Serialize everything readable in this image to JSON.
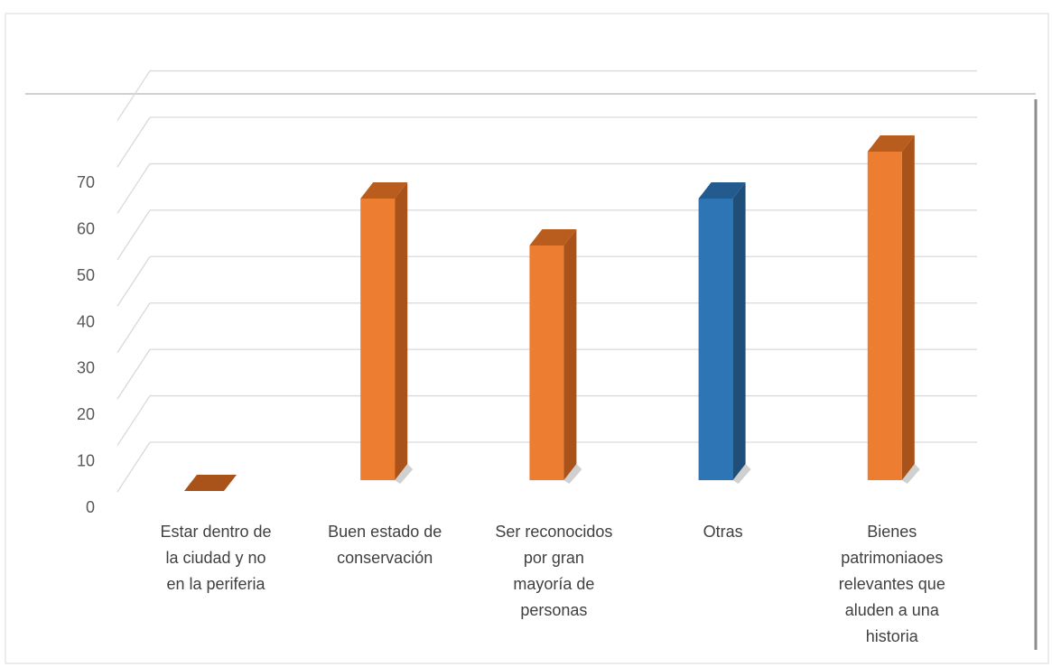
{
  "chart_data": {
    "type": "bar",
    "title": "",
    "xlabel": "",
    "ylabel": "",
    "categories": [
      [
        "Estar dentro de",
        "la ciudad y no",
        "en la periferia"
      ],
      [
        "Buen estado de",
        "conservación"
      ],
      [
        "Ser reconocidos",
        "por gran",
        "mayoría de",
        "personas"
      ],
      [
        "Otras"
      ],
      [
        "Bienes",
        "patrimoniaoes",
        "relevantes que",
        "aluden a una",
        "historia"
      ]
    ],
    "values": [
      0,
      60,
      50,
      60,
      70
    ],
    "bar_colors": [
      "#ED7D31",
      "#ED7D31",
      "#ED7D31",
      "#2E75B6",
      "#ED7D31"
    ],
    "bar_side_colors": [
      "#A9521A",
      "#A9521A",
      "#A9521A",
      "#1F4E79",
      "#A9521A"
    ],
    "bar_top_colors": [
      "#B85D1E",
      "#B85D1E",
      "#B85D1E",
      "#245B8E",
      "#B85D1E"
    ],
    "ylim": [
      0,
      70
    ],
    "yticks": [
      0,
      10,
      20,
      30,
      40,
      50,
      60,
      70
    ],
    "grid": true,
    "legend": "none",
    "style": "3d-column"
  }
}
